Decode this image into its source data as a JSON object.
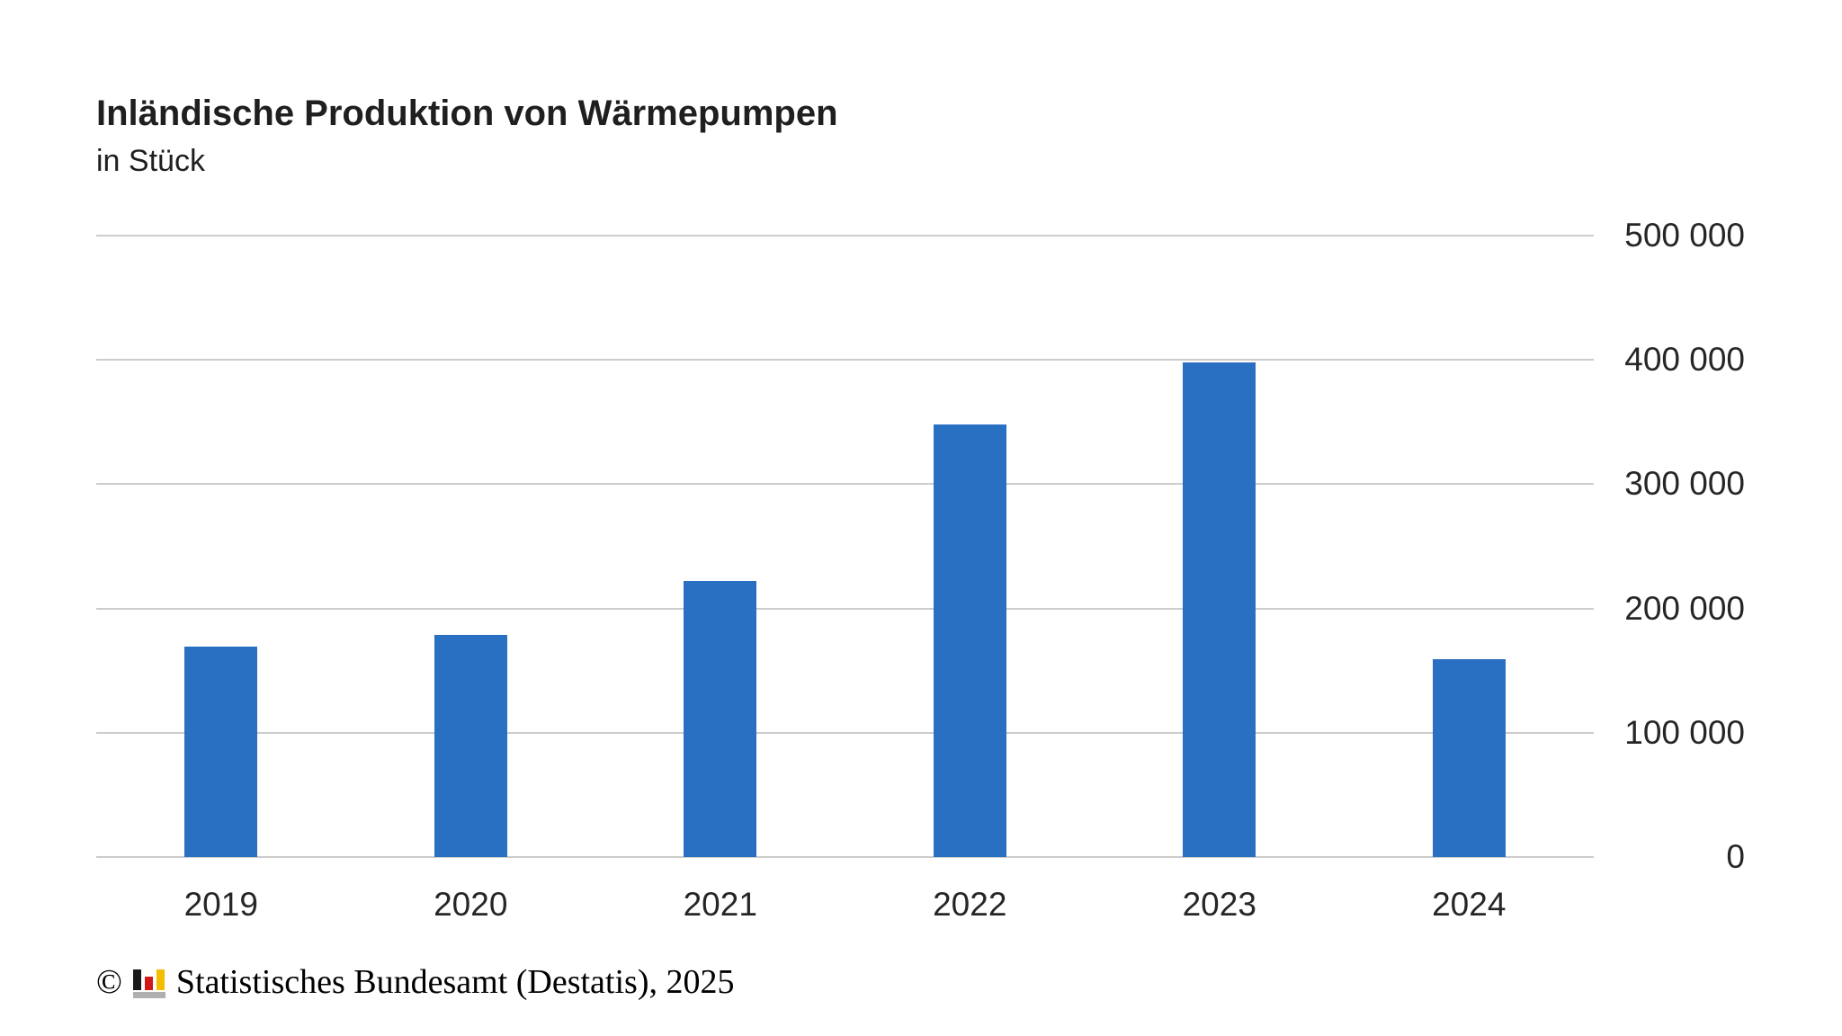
{
  "header": {
    "title": "Inländische Produktion von Wärmepumpen",
    "subtitle": "in Stück"
  },
  "chart_data": {
    "type": "bar",
    "categories": [
      "2019",
      "2020",
      "2021",
      "2022",
      "2023",
      "2024"
    ],
    "values": [
      169000,
      179000,
      222000,
      348000,
      398000,
      159000
    ],
    "title": "Inländische Produktion von Wärmepumpen",
    "subtitle": "in Stück",
    "xlabel": "",
    "ylabel": "",
    "ylim": [
      0,
      500000
    ],
    "ytick_step": 100000,
    "ytick_labels": [
      "0",
      "100 000",
      "200 000",
      "300 000",
      "400 000",
      "500 000"
    ],
    "yaxis_side": "right",
    "grid": true,
    "legend": false,
    "bar_color": "#2a70c2",
    "gridline_color": "#cccccc",
    "text_color": "#262626"
  },
  "footer": {
    "copyright_symbol": "©",
    "source_text": "Statistisches Bundesamt (Destatis), 2025",
    "logo_icon": {
      "name": "destatis-logo",
      "bar_colors": [
        "#1a1a1a",
        "#d11717",
        "#f5bd00"
      ],
      "base_color": "#b0b0b0"
    }
  }
}
